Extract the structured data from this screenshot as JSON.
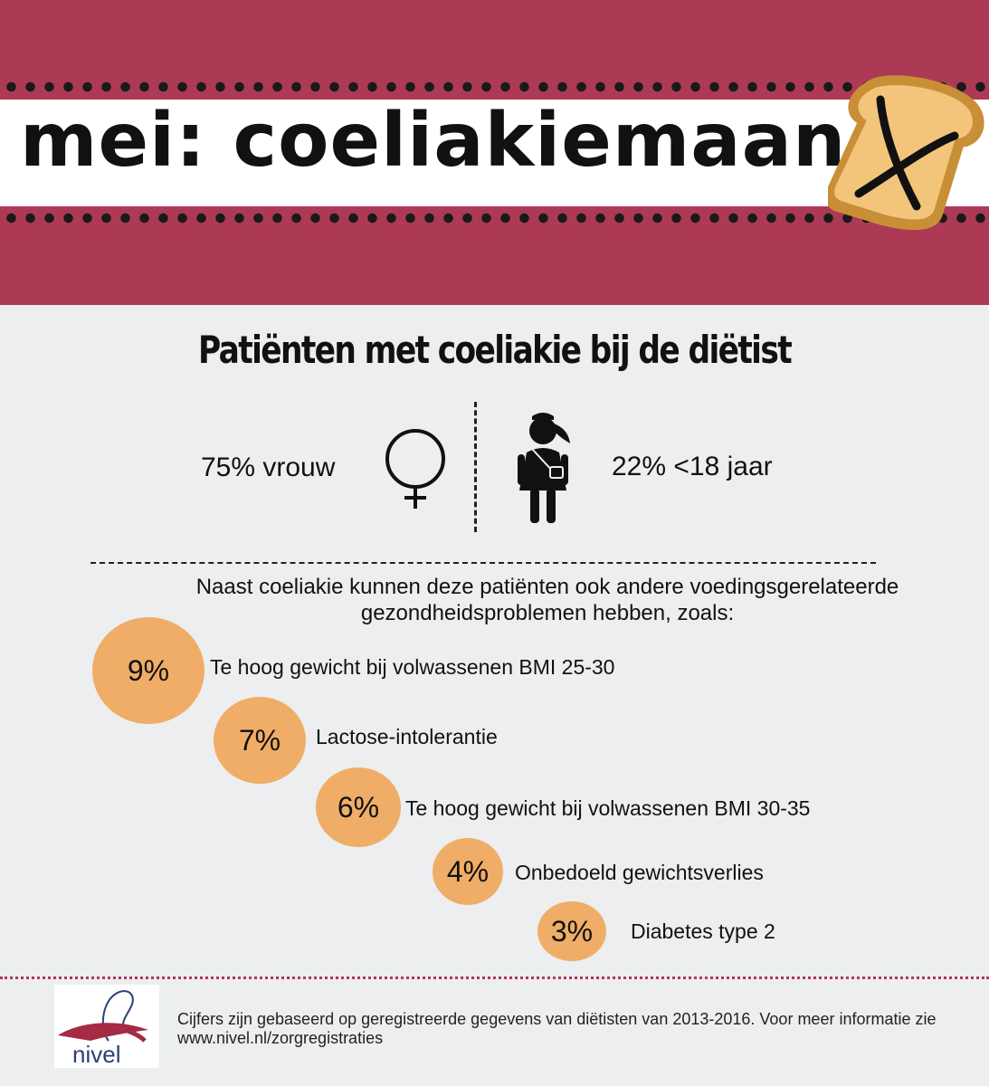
{
  "header": {
    "title": "mei: coeliakiemaand",
    "icon": "crossed-out-toast-icon",
    "colors": {
      "banner": "#ad3a55",
      "toast": "#f2c57a",
      "toast_crust": "#c98f36"
    }
  },
  "section": {
    "title": "Patiënten met coeliakie bij de diëtist"
  },
  "stats": {
    "women": {
      "label": "75% vrouw",
      "icon": "female-symbol-icon"
    },
    "children": {
      "label": "22% <18 jaar",
      "icon": "girl-icon"
    }
  },
  "intro": "Naast coeliakie kunnen deze patiënten ook andere voedingsgerelateerde gezondheidsproblemen hebben, zoals:",
  "conditions": [
    {
      "percent": "9%",
      "label": "Te hoog gewicht bij volwassenen BMI 25-30"
    },
    {
      "percent": "7%",
      "label": "Lactose-intolerantie"
    },
    {
      "percent": "6%",
      "label": "Te hoog gewicht bij volwassenen BMI 30-35"
    },
    {
      "percent": "4%",
      "label": "Onbedoeld gewichtsverlies"
    },
    {
      "percent": "3%",
      "label": "Diabetes type 2"
    }
  ],
  "circle_color": "#f0ad67",
  "footer": {
    "logo_text": "nivel",
    "logo_icon": "nivel-logo-icon",
    "source": "Cijfers zijn gebaseerd op geregistreerde gegevens van diëtisten van 2013-2016. Voor meer informatie zie www.nivel.nl/zorgregistraties"
  }
}
